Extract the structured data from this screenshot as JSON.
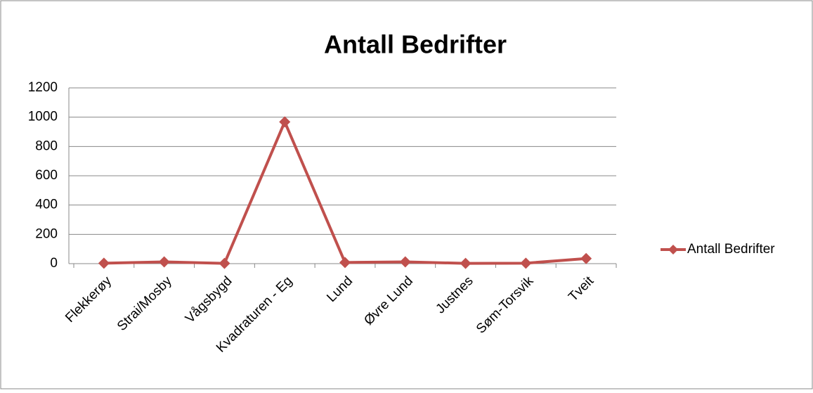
{
  "chart_data": {
    "type": "line",
    "title": "Antall Bedrifter",
    "categories": [
      "Flekkerøy",
      "Strai/Mosby",
      "Vågsbygd",
      "Kvadraturen - Eg",
      "Lund",
      "Øvre Lund",
      "Justnes",
      "Søm-Torsvik",
      "Tveit"
    ],
    "series": [
      {
        "name": "Antall Bedrifter",
        "color": "#c0504d",
        "values": [
          3,
          12,
          2,
          968,
          8,
          12,
          2,
          3,
          35
        ]
      }
    ],
    "ylim": [
      0,
      1200
    ],
    "yticks": [
      0,
      200,
      400,
      600,
      800,
      1000,
      1200
    ],
    "grid": true,
    "legend": "right"
  }
}
